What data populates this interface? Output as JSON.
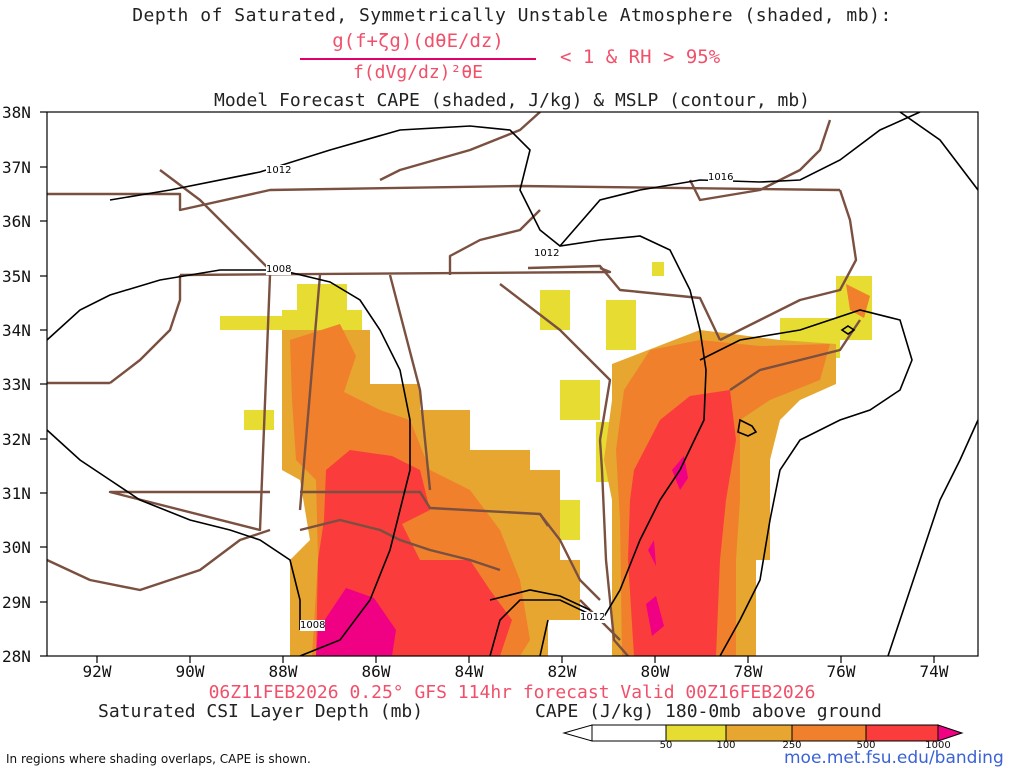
{
  "header": {
    "title_line1": "Depth of Saturated, Symmetrically Unstable Atmosphere (shaded, mb):",
    "csi_numerator": "g(f+ζg)(dθE/dz)",
    "csi_denominator": "f(dVg/dz)²θE",
    "csi_condition": "< 1 & RH > 95%",
    "title_line3": "Model Forecast CAPE (shaded, J/kg) & MSLP (contour, mb)"
  },
  "footer": {
    "valid_line": "06Z11FEB2026 0.25° GFS 114hr forecast Valid 00Z16FEB2026",
    "csi_label": "Saturated CSI Layer Depth (mb)",
    "cape_label": "CAPE (J/kg) 180-0mb above ground",
    "note": "In regions where shading overlaps, CAPE is shown.",
    "website": "moe.met.fsu.edu/banding"
  },
  "axes": {
    "lat_labels": [
      "38N",
      "37N",
      "36N",
      "35N",
      "34N",
      "33N",
      "32N",
      "31N",
      "30N",
      "29N",
      "28N"
    ],
    "lon_labels": [
      "92W",
      "90W",
      "88W",
      "86W",
      "84W",
      "82W",
      "80W",
      "78W",
      "76W",
      "74W"
    ],
    "lat_range": [
      28,
      38
    ],
    "lon_range": [
      -93.2,
      -73.2
    ]
  },
  "isobars": [
    {
      "label": "1012",
      "value": 1012
    },
    {
      "label": "1016",
      "value": 1016
    },
    {
      "label": "1012",
      "value": 1012
    },
    {
      "label": "1008",
      "value": 1008
    },
    {
      "label": "1012",
      "value": 1012
    },
    {
      "label": "1008",
      "value": 1008
    }
  ],
  "colorbar": {
    "labels": [
      "50",
      "100",
      "250",
      "500",
      "1000"
    ],
    "colors": [
      "#ffffff",
      "#e6dc32",
      "#e6a630",
      "#f0802c",
      "#fa3c3c",
      "#f00082"
    ]
  },
  "colors": {
    "border": "#7a5040",
    "contour": "#000000",
    "title_accent": "#f0506a",
    "website": "#3b62d6"
  }
}
